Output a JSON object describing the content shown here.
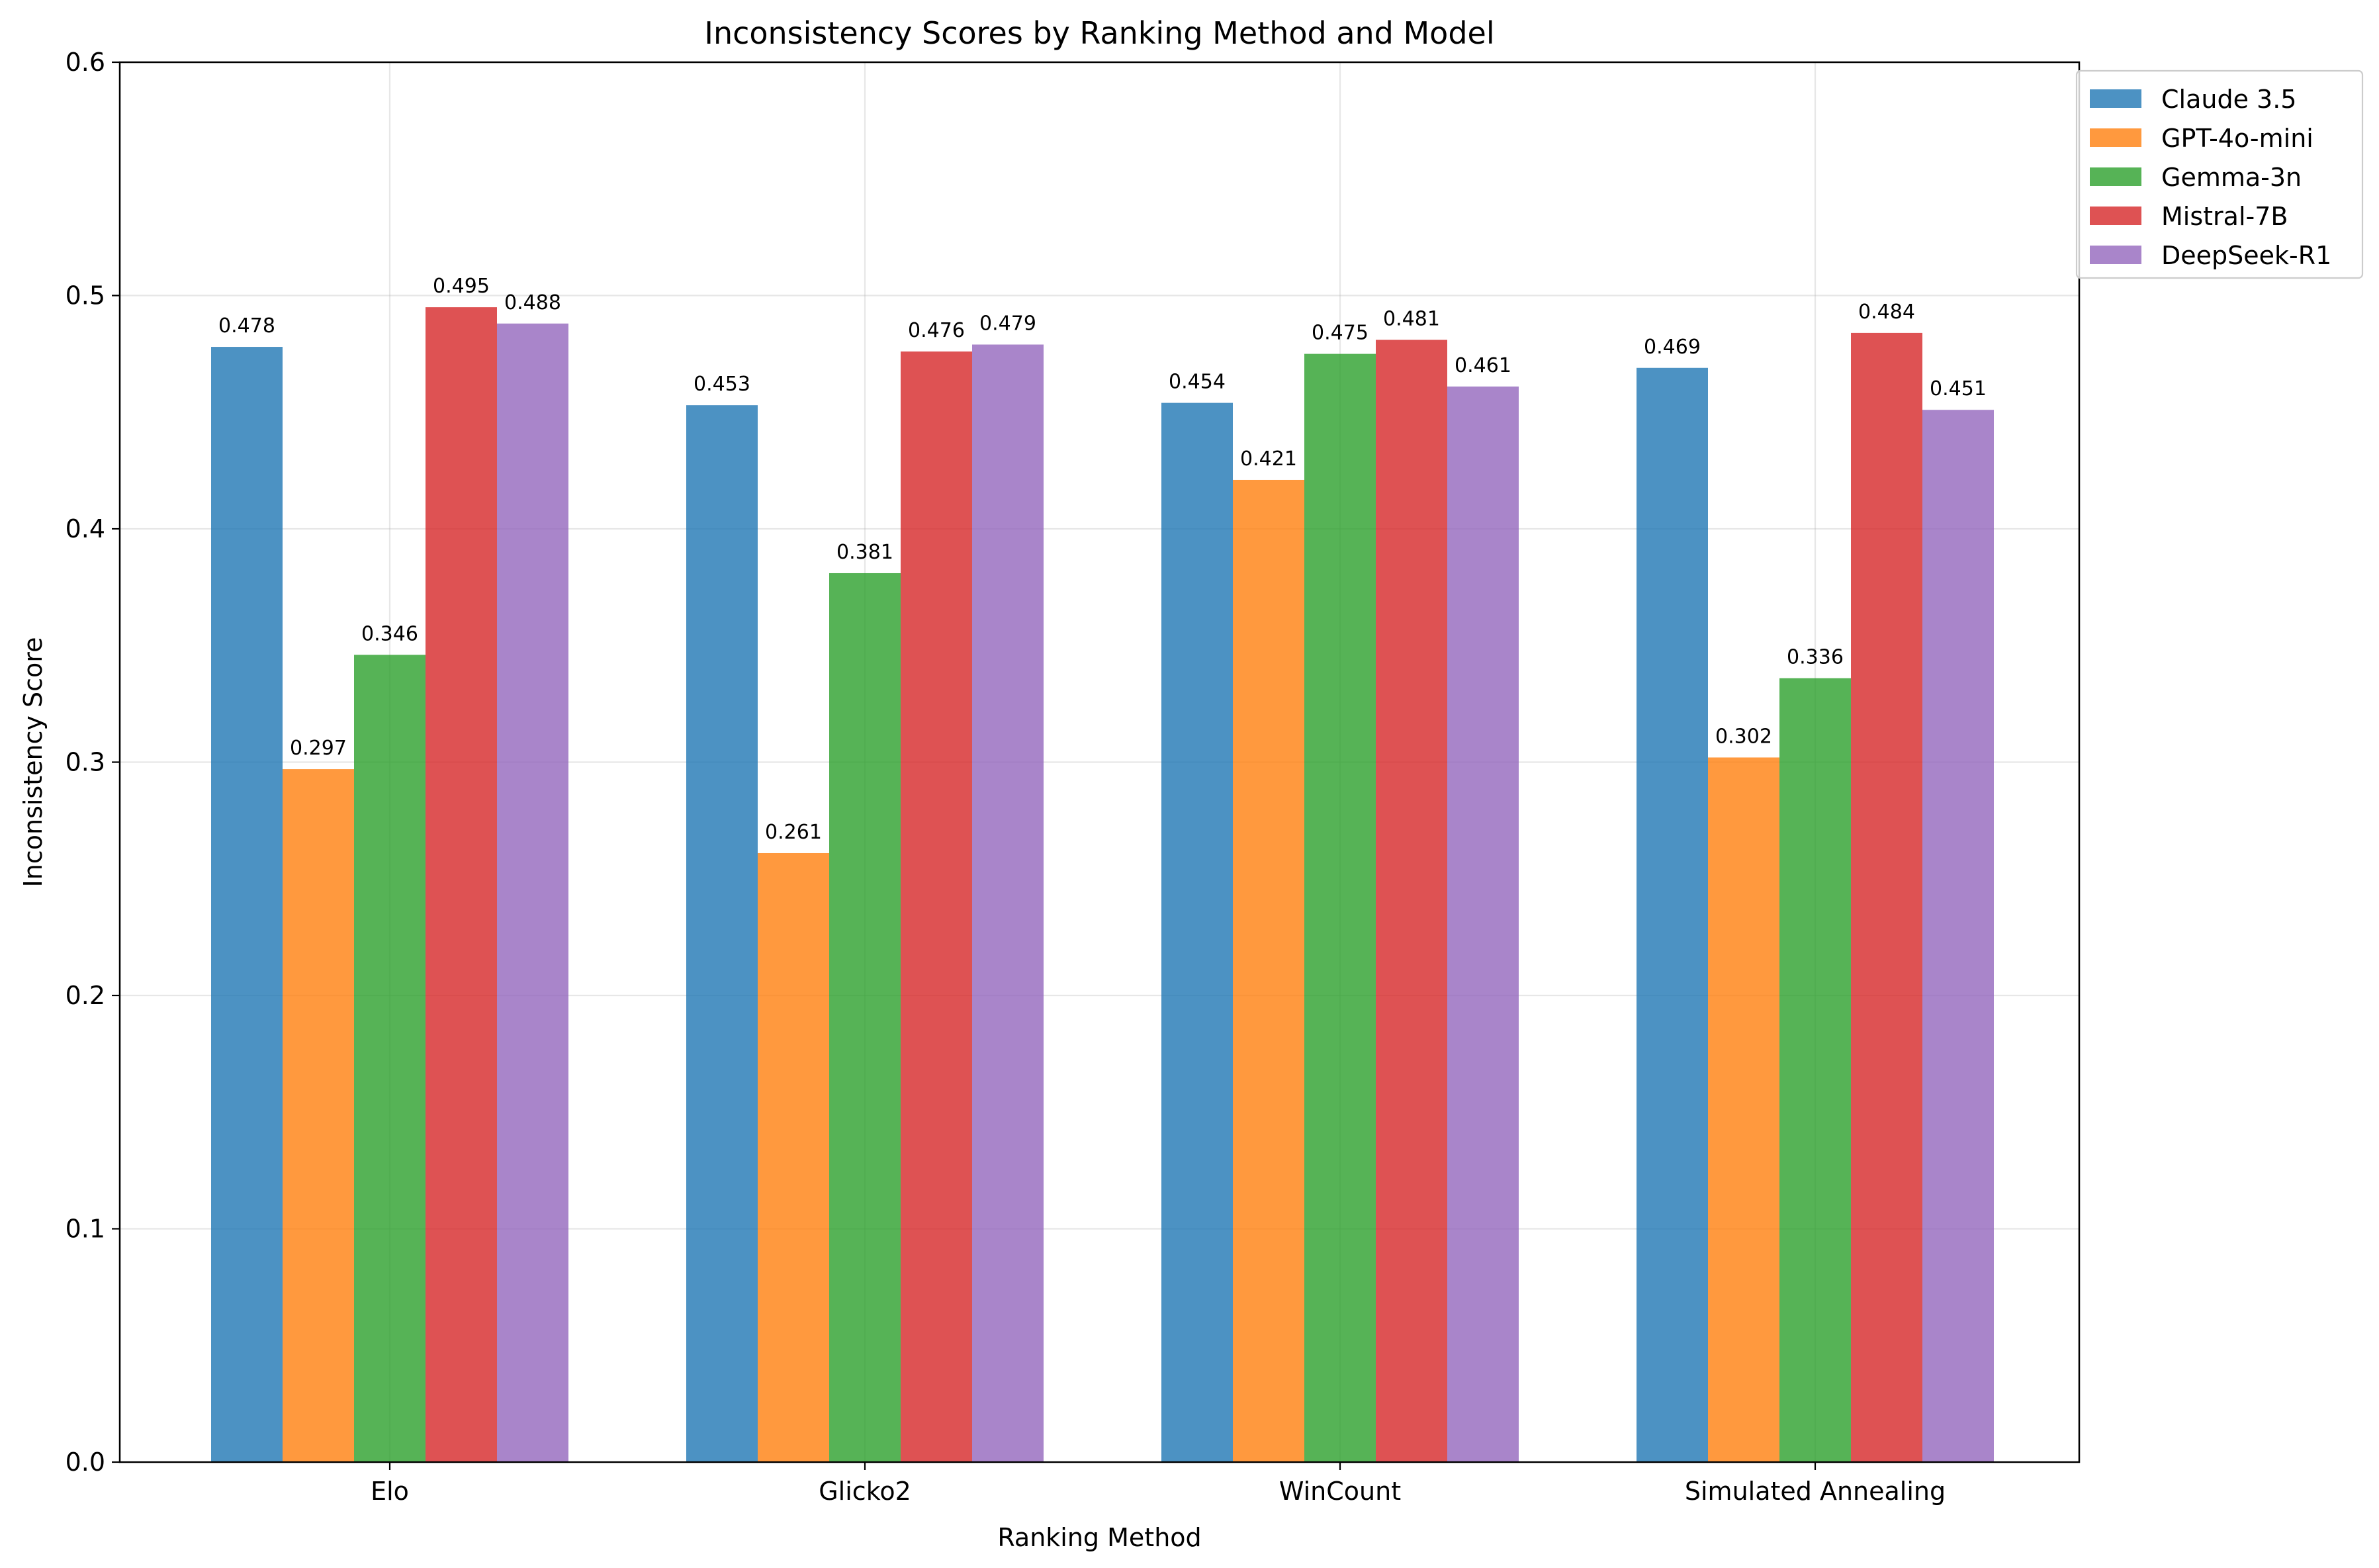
{
  "chart_data": {
    "type": "bar",
    "title": "Inconsistency Scores by Ranking Method and Model",
    "xlabel": "Ranking Method",
    "ylabel": "Inconsistency Score",
    "categories": [
      "Elo",
      "Glicko2",
      "WinCount",
      "Simulated Annealing"
    ],
    "ylim": [
      0,
      0.6
    ],
    "yticks": [
      "0.0",
      "0.1",
      "0.2",
      "0.3",
      "0.4",
      "0.5",
      "0.6"
    ],
    "grid": true,
    "legend_position": "top-right",
    "series": [
      {
        "name": "Claude 3.5",
        "color": "#1f77b4",
        "values": [
          0.478,
          0.453,
          0.454,
          0.469
        ],
        "labels": [
          "0.478",
          "0.453",
          "0.454",
          "0.469"
        ]
      },
      {
        "name": "GPT-4o-mini",
        "color": "#ff7f0e",
        "values": [
          0.297,
          0.261,
          0.421,
          0.302
        ],
        "labels": [
          "0.297",
          "0.261",
          "0.421",
          "0.302"
        ]
      },
      {
        "name": "Gemma-3n",
        "color": "#2ca02c",
        "values": [
          0.346,
          0.381,
          0.475,
          0.336
        ],
        "labels": [
          "0.346",
          "0.381",
          "0.475",
          "0.336"
        ]
      },
      {
        "name": "Mistral-7B",
        "color": "#d62728",
        "values": [
          0.495,
          0.476,
          0.481,
          0.484
        ],
        "labels": [
          "0.495",
          "0.476",
          "0.481",
          "0.484"
        ]
      },
      {
        "name": "DeepSeek-R1",
        "color": "#9467bd",
        "values": [
          0.488,
          0.479,
          0.461,
          0.451
        ],
        "labels": [
          "0.488",
          "0.479",
          "0.461",
          "0.451"
        ]
      }
    ]
  }
}
